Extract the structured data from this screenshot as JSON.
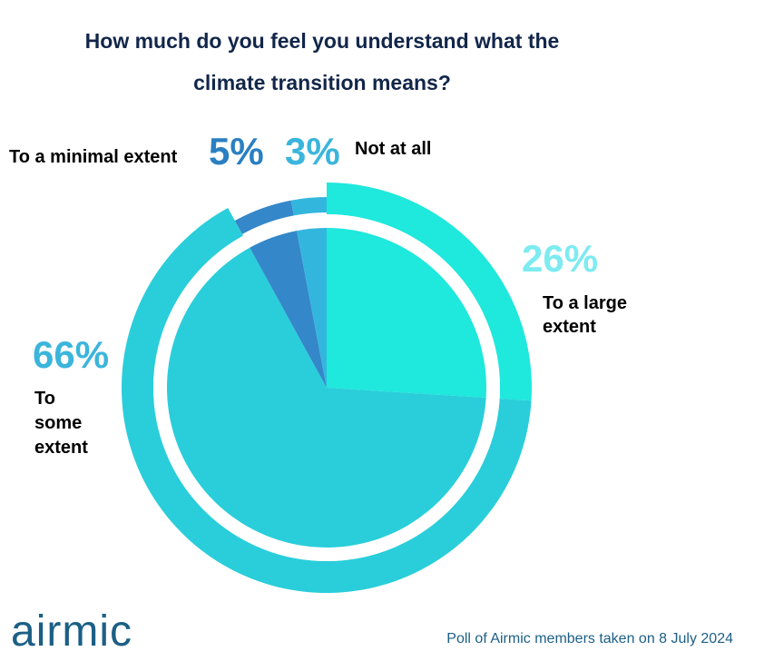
{
  "title_line1": "How much do you feel you understand what the",
  "title_line2": "climate transition means?",
  "chart_data": {
    "type": "pie",
    "title": "How much do you feel you understand what the climate transition means?",
    "slices": [
      {
        "label": "To a large extent",
        "label_lines": [
          "To a large",
          "extent"
        ],
        "value": 26,
        "pct_text": "26%",
        "color": "#1fe8dc",
        "ring_color": "#1fe8dc",
        "pct_color": "#7debf0"
      },
      {
        "label": "To some extent",
        "label_lines": [
          "To",
          "some",
          "extent"
        ],
        "value": 66,
        "pct_text": "66%",
        "color": "#29ceda",
        "ring_color": "#29ceda",
        "pct_color": "#3bb5dc"
      },
      {
        "label": "To a minimal extent",
        "label_lines": [
          "To a minimal extent"
        ],
        "value": 5,
        "pct_text": "5%",
        "color": "#3487c9",
        "ring_color": "#3487c9",
        "pct_color": "#2a7fc2"
      },
      {
        "label": "Not at all",
        "label_lines": [
          "Not at all"
        ],
        "value": 3,
        "pct_text": "3%",
        "color": "#33b6de",
        "ring_color": "#33b6de",
        "pct_color": "#3bb5dc"
      }
    ]
  },
  "logo_text": "airmic",
  "footnote": "Poll of Airmic members taken on 8 July 2024"
}
